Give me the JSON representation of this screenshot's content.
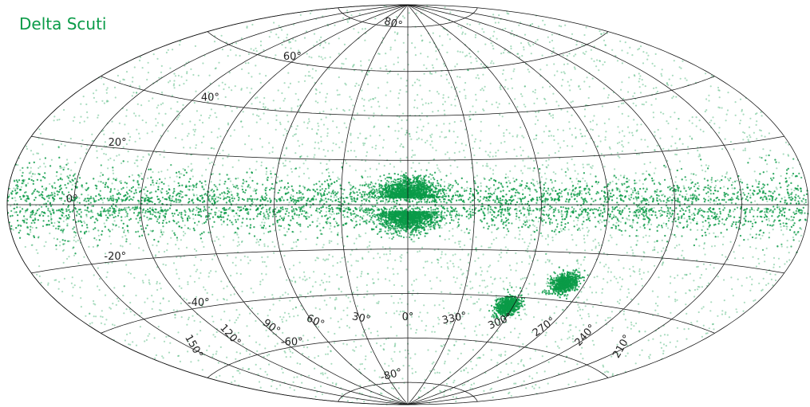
{
  "title": "Delta Scuti",
  "point_color": "#0a9b48",
  "grid_color": "#111111",
  "latitude_labels": [
    {
      "deg": 80,
      "text": "80°"
    },
    {
      "deg": 60,
      "text": "60°"
    },
    {
      "deg": 40,
      "text": "40°"
    },
    {
      "deg": 20,
      "text": "20°"
    },
    {
      "deg": 0,
      "text": "0°"
    },
    {
      "deg": -20,
      "text": "-20°"
    },
    {
      "deg": -40,
      "text": "-40°"
    },
    {
      "deg": -60,
      "text": "-60°"
    },
    {
      "deg": -80,
      "text": "-80°"
    }
  ],
  "longitude_labels": [
    {
      "deg": 150,
      "text": "150°"
    },
    {
      "deg": 120,
      "text": "120°"
    },
    {
      "deg": 90,
      "text": "90°"
    },
    {
      "deg": 60,
      "text": "60°"
    },
    {
      "deg": 30,
      "text": "30°"
    },
    {
      "deg": 0,
      "text": "0°"
    },
    {
      "deg": 330,
      "text": "330°"
    },
    {
      "deg": 300,
      "text": "300°"
    },
    {
      "deg": 270,
      "text": "270°"
    },
    {
      "deg": 240,
      "text": "240°"
    },
    {
      "deg": 210,
      "text": "210°"
    }
  ],
  "chart_data": {
    "type": "scatter",
    "projection": "aitoff",
    "coordinate_system": "galactic",
    "title": "Delta Scuti",
    "latitude_grid_deg": [
      -80,
      -60,
      -40,
      -20,
      0,
      20,
      40,
      60,
      80
    ],
    "longitude_grid_deg": [
      0,
      30,
      60,
      90,
      120,
      150,
      180,
      210,
      240,
      270,
      300,
      330
    ],
    "density_features": [
      {
        "name": "galactic plane band",
        "lat_center": 0,
        "lat_half_width": 9,
        "weight": "high"
      },
      {
        "name": "bulge north",
        "lon_center": 0,
        "lat_center": 5,
        "lon_half_width": 12,
        "lat_half_width": 5,
        "weight": "very high"
      },
      {
        "name": "bulge south",
        "lon_center": 0,
        "lat_center": -6,
        "lon_half_width": 11,
        "lat_half_width": 5,
        "weight": "very high"
      },
      {
        "name": "cluster",
        "lon_center": 303,
        "lat_center": -44,
        "radius": 3.5,
        "weight": "very high"
      },
      {
        "name": "cluster",
        "lon_center": 280,
        "lat_center": -33,
        "radius": 3.5,
        "weight": "very high"
      }
    ]
  }
}
